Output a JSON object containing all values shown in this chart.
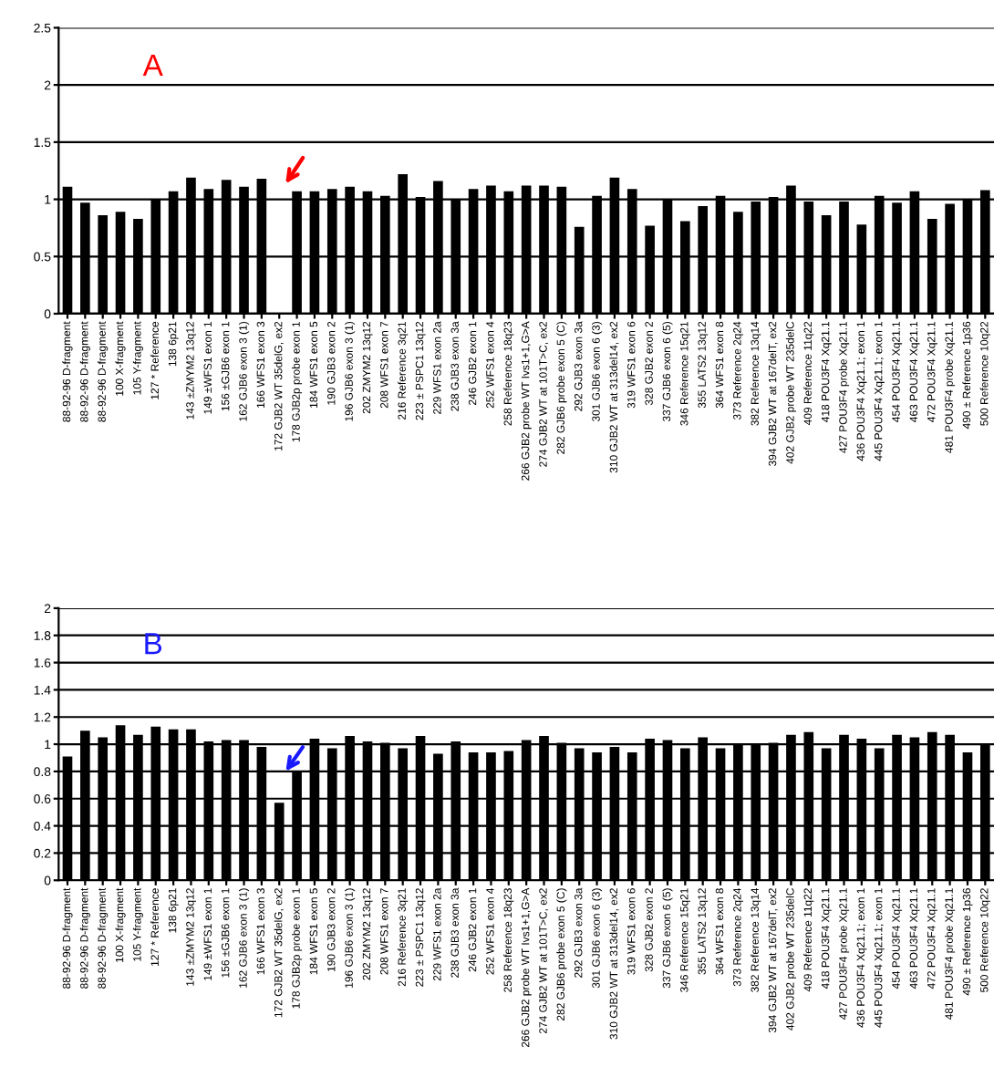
{
  "chart_data": [
    {
      "type": "bar",
      "annotations": [
        "A"
      ],
      "color": "#000000",
      "grid": "y",
      "ylim": [
        0,
        2.5
      ],
      "yticks": [
        0,
        0.5,
        1,
        1.5,
        2,
        2.5
      ],
      "categories": [
        "88-92-96 D-fragment",
        "88-92-96 D-fragment",
        "88-92-96 D-fragment",
        "100 X-fragment",
        "105 Y-fragment",
        "127 * Reference",
        "138 6p21",
        "143 ±ZMYM2 13q12",
        "149 ±WFS1 exon 1",
        "156 ±GJB6 exon 1",
        "162 GJB6 exon 3 (1)",
        "166 WFS1 exon 3",
        "172 GJB2 WT 35delG, ex2",
        "178 GJB2p probe exon 1",
        "184 WFS1 exon 5",
        "190 GJB3 exon 2",
        "196 GJB6 exon 3 (1)",
        "202 ZMYM2 13q12",
        "208 WFS1 exon 7",
        "216 Reference 3q21",
        "223 ± PSPC1 13q12",
        "229 WFS1 exon 2a",
        "238 GJB3 exon 3a",
        "246 GJB2 exon 1",
        "252 WFS1 exon 4",
        "258 Reference 18q23",
        "266 GJB2 probe WT Ivs1+1,G>A",
        "274 GJB2 WT at 101T>C, ex2",
        "282 GJB6 probe exon 5 (C)",
        "292 GJB3 exon 3a",
        "301 GJB6 exon 6 (3)",
        "310 GJB2 WT at 313del14, ex2",
        "319 WFS1 exon 6",
        "328 GJB2 exon 2",
        "337 GJB6 exon 6 (5)",
        "346 Reference 15q21",
        "355 LATS2 13q12",
        "364 WFS1 exon 8",
        "373 Reference 2q24",
        "382 Reference 13q14",
        "394 GJB2 WT at 167delT, ex2",
        "402 GJB2 probe WT 235delC",
        "409 Reference 11q22",
        "418 POU3F4 Xq21.1",
        "427 POU3F4 probe Xq21.1",
        "436 POU3F4 Xq21.1; exon 1",
        "445 POU3F4 Xq21.1; exon 1",
        "454 POU3F4 Xq21.1",
        "463 POU3F4 Xq21.1",
        "472 POU3F4 Xq21.1",
        "481 POU3F4 probe Xq21.1",
        "490 ± Reference 1p36",
        "500 Reference 10q22"
      ],
      "values": [
        1.11,
        0.97,
        0.86,
        0.89,
        0.83,
        1.0,
        1.07,
        1.19,
        1.09,
        1.17,
        1.11,
        1.18,
        0,
        1.07,
        1.07,
        1.09,
        1.11,
        1.07,
        1.03,
        1.22,
        1.02,
        1.16,
        1.0,
        1.09,
        1.12,
        1.07,
        1.12,
        1.12,
        1.11,
        0.76,
        1.03,
        1.19,
        1.09,
        0.77,
        1.0,
        0.81,
        0.94,
        1.03,
        0.89,
        0.98,
        1.02,
        1.12,
        0.98,
        0.86,
        0.98,
        0.78,
        1.03,
        0.97,
        1.07,
        0.83,
        0.96,
        1.0,
        1.08
      ]
    },
    {
      "type": "bar",
      "annotations": [
        "B"
      ],
      "color": "#000000",
      "grid": "y",
      "ylim": [
        0,
        2
      ],
      "yticks": [
        0,
        0.2,
        0.4,
        0.6,
        0.8,
        1,
        1.2,
        1.4,
        1.6,
        1.8,
        2
      ],
      "categories": [
        "88-92-96 D-fragment",
        "88-92-96 D-fragment",
        "88-92-96 D-fragment",
        "100 X-fragment",
        "105 Y-fragment",
        "127 * Reference",
        "138 6p21",
        "143 ±ZMYM2 13q12",
        "149 ±WFS1 exon 1",
        "156 ±GJB6 exon 1",
        "162 GJB6 exon 3 (1)",
        "166 WFS1 exon 3",
        "172 GJB2 WT 35delG, ex2",
        "178 GJB2p probe exon 1",
        "184 WFS1 exon 5",
        "190 GJB3 exon 2",
        "196 GJB6 exon 3 (1)",
        "202 ZMYM2 13q12",
        "208 WFS1 exon 7",
        "216 Reference 3q21",
        "223 ± PSPC1 13q12",
        "229 WFS1 exon 2a",
        "238 GJB3 exon 3a",
        "246 GJB2 exon 1",
        "252 WFS1 exon 4",
        "258 Reference 18q23",
        "266 GJB2 probe WT Ivs1+1,G>A",
        "274 GJB2 WT at 101T>C, ex2",
        "282 GJB6 probe exon 5 (C)",
        "292 GJB3 exon 3a",
        "301 GJB6 exon 6 (3)",
        "310 GJB2 WT at 313del14, ex2",
        "319 WFS1 exon 6",
        "328 GJB2 exon 2",
        "337 GJB6 exon 6 (5)",
        "346 Reference 15q21",
        "355 LATS2 13q12",
        "364 WFS1 exon 8",
        "373 Reference 2q24",
        "382 Reference 13q14",
        "394 GJB2 WT at 167delT, ex2",
        "402 GJB2 probe WT 235delC",
        "409 Reference 11q22",
        "418 POU3F4 Xq21.1",
        "427 POU3F4 probe Xq21.1",
        "436 POU3F4 Xq21.1; exon 1",
        "445 POU3F4 Xq21.1; exon 1",
        "454 POU3F4 Xq21.1",
        "463 POU3F4 Xq21.1",
        "472 POU3F4 Xq21.1",
        "481 POU3F4 probe Xq21.1",
        "490 ± Reference 1p36",
        "500 Reference 10q22"
      ],
      "values": [
        0.91,
        1.1,
        1.05,
        1.14,
        1.07,
        1.13,
        1.11,
        1.11,
        1.02,
        1.03,
        1.03,
        0.98,
        0.57,
        0.8,
        1.04,
        0.97,
        1.06,
        1.02,
        1.01,
        0.97,
        1.06,
        0.93,
        1.02,
        0.94,
        0.94,
        0.95,
        1.03,
        1.06,
        1.01,
        0.97,
        0.94,
        0.98,
        0.94,
        1.04,
        1.03,
        0.97,
        1.05,
        0.97,
        1.0,
        1.0,
        1.01,
        1.07,
        1.09,
        0.97,
        1.07,
        1.04,
        0.97,
        1.07,
        1.05,
        1.09,
        1.07,
        0.94,
        1.0
      ]
    }
  ]
}
